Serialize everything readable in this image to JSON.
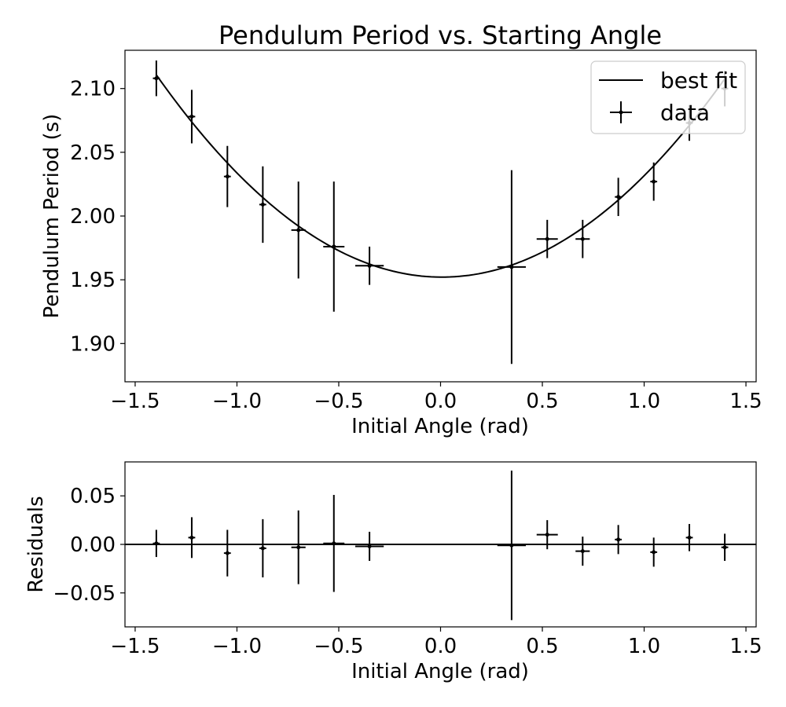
{
  "chart_data": [
    {
      "name": "main",
      "type": "scatter",
      "title": "Pendulum Period vs. Starting Angle",
      "xlabel": "Initial Angle (rad)",
      "ylabel": "Pendulum Period (s)",
      "xlim": [
        -1.55,
        1.55
      ],
      "ylim": [
        1.87,
        2.13
      ],
      "xticks": [
        -1.5,
        -1.0,
        -0.5,
        0.0,
        0.5,
        1.0,
        1.5
      ],
      "yticks": [
        1.9,
        1.95,
        2.0,
        2.05,
        2.1
      ],
      "xtick_labels": [
        "−1.5",
        "−1.0",
        "−0.5",
        "0.0",
        "0.5",
        "1.0",
        "1.5"
      ],
      "ytick_labels": [
        "1.90",
        "1.95",
        "2.00",
        "2.05",
        "2.10"
      ],
      "grid": false,
      "legend": {
        "placement": "top-right",
        "entries": [
          {
            "label": "best fit",
            "kind": "line"
          },
          {
            "label": "data",
            "kind": "errorbar"
          }
        ]
      },
      "fit": {
        "label": "best fit",
        "model": "quadratic",
        "coefficients": [
          0.0806,
          -0.0011,
          1.9521
        ],
        "color": "#000000"
      },
      "series": [
        {
          "name": "data",
          "color": "#000000",
          "x": [
            -1.396,
            -1.222,
            -1.047,
            -0.873,
            -0.698,
            -0.524,
            -0.349,
            0.349,
            0.524,
            0.698,
            0.873,
            1.047,
            1.222,
            1.396
          ],
          "y": [
            2.108,
            2.078,
            2.031,
            2.009,
            1.989,
            1.976,
            1.961,
            1.96,
            1.982,
            1.982,
            2.015,
            2.027,
            2.073,
            2.1
          ],
          "xerr": [
            0.017,
            0.017,
            0.017,
            0.017,
            0.035,
            0.052,
            0.07,
            0.07,
            0.052,
            0.035,
            0.017,
            0.017,
            0.017,
            0.017
          ],
          "yerr": [
            0.014,
            0.021,
            0.024,
            0.03,
            0.038,
            0.051,
            0.015,
            0.076,
            0.015,
            0.015,
            0.015,
            0.015,
            0.014,
            0.014
          ]
        }
      ]
    },
    {
      "name": "residuals",
      "type": "scatter",
      "title": "",
      "xlabel": "Initial Angle (rad)",
      "ylabel": "Residuals",
      "xlim": [
        -1.55,
        1.55
      ],
      "ylim": [
        -0.085,
        0.085
      ],
      "xticks": [
        -1.5,
        -1.0,
        -0.5,
        0.0,
        0.5,
        1.0,
        1.5
      ],
      "yticks": [
        -0.05,
        0.0,
        0.05
      ],
      "xtick_labels": [
        "−1.5",
        "−1.0",
        "−0.5",
        "0.0",
        "0.5",
        "1.0",
        "1.5"
      ],
      "ytick_labels": [
        "−0.05",
        "0.00",
        "0.05"
      ],
      "grid": false,
      "zero_line": true,
      "series": [
        {
          "name": "residuals",
          "color": "#000000",
          "x": [
            -1.396,
            -1.222,
            -1.047,
            -0.873,
            -0.698,
            -0.524,
            -0.349,
            0.349,
            0.524,
            0.698,
            0.873,
            1.047,
            1.222,
            1.396
          ],
          "y": [
            0.001,
            0.007,
            -0.009,
            -0.004,
            -0.003,
            0.001,
            -0.002,
            -0.001,
            0.01,
            -0.007,
            0.005,
            -0.008,
            0.007,
            -0.003
          ],
          "xerr": [
            0.017,
            0.017,
            0.017,
            0.017,
            0.035,
            0.052,
            0.07,
            0.07,
            0.052,
            0.035,
            0.017,
            0.017,
            0.017,
            0.017
          ],
          "yerr": [
            0.014,
            0.021,
            0.024,
            0.03,
            0.038,
            0.05,
            0.015,
            0.077,
            0.015,
            0.015,
            0.015,
            0.015,
            0.014,
            0.014
          ]
        }
      ]
    }
  ]
}
